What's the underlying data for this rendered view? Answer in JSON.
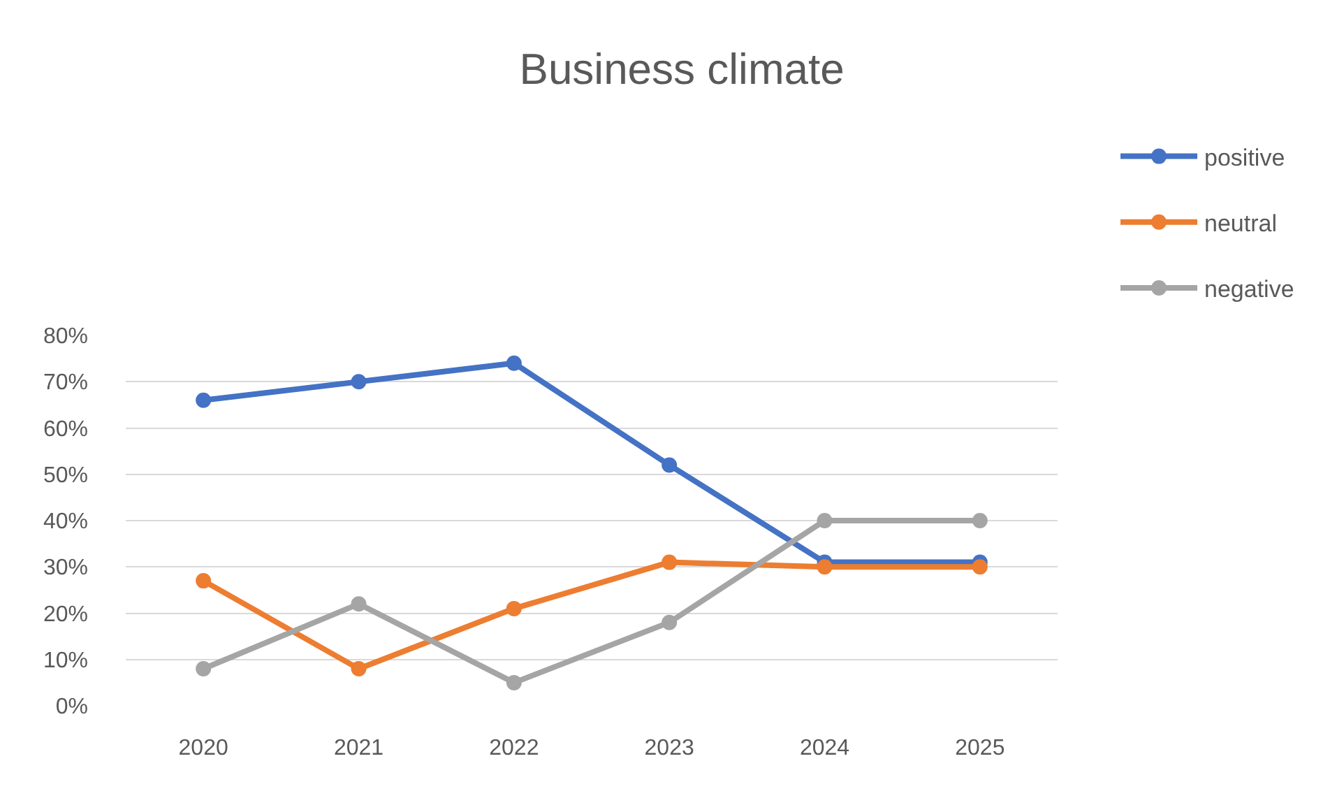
{
  "chart_data": {
    "type": "line",
    "title": "Business climate",
    "categories": [
      "2020",
      "2021",
      "2022",
      "2023",
      "2024",
      "2025"
    ],
    "series": [
      {
        "name": "positive",
        "color": "#4472c4",
        "values": [
          66,
          70,
          74,
          52,
          31,
          31
        ]
      },
      {
        "name": "neutral",
        "color": "#ed7d31",
        "values": [
          27,
          8,
          21,
          31,
          30,
          30
        ]
      },
      {
        "name": "negative",
        "color": "#a5a5a5",
        "values": [
          8,
          22,
          5,
          18,
          40,
          40
        ]
      }
    ],
    "ylim": [
      0,
      80
    ],
    "yticks": [
      {
        "value": 0,
        "label": "0%"
      },
      {
        "value": 10,
        "label": "10%"
      },
      {
        "value": 20,
        "label": "20%"
      },
      {
        "value": 30,
        "label": "30%"
      },
      {
        "value": 40,
        "label": "40%"
      },
      {
        "value": 50,
        "label": "50%"
      },
      {
        "value": 60,
        "label": "60%"
      },
      {
        "value": 70,
        "label": "70%"
      },
      {
        "value": 80,
        "label": "80%"
      }
    ],
    "grid": "y",
    "legend": "top right",
    "marker": "circle",
    "line_style": "solid"
  }
}
